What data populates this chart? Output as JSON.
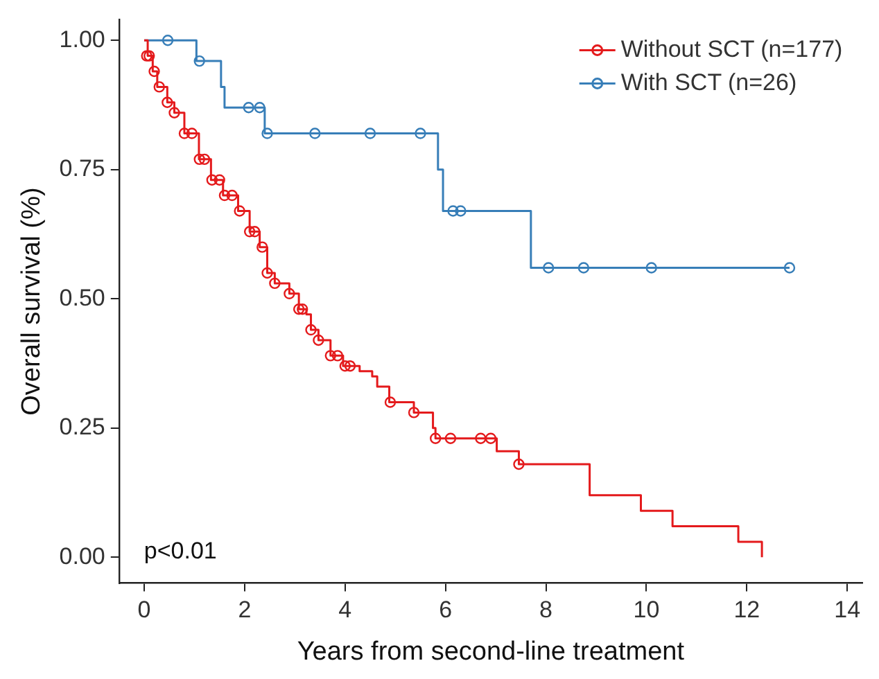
{
  "chart_data": {
    "type": "step",
    "xlabel": "Years from second-line treatment",
    "ylabel": "Overall survival (%)",
    "xlim": [
      -0.5,
      14.3
    ],
    "ylim": [
      -0.05,
      1.04
    ],
    "xticks": [
      0,
      2,
      4,
      6,
      8,
      10,
      12,
      14
    ],
    "yticks": [
      {
        "value": 0,
        "label": "0.00"
      },
      {
        "value": 0.25,
        "label": "0.25"
      },
      {
        "value": 0.5,
        "label": "0.50"
      },
      {
        "value": 0.75,
        "label": "0.75"
      },
      {
        "value": 1,
        "label": "1.00"
      }
    ],
    "grid": false,
    "legend": "top right",
    "line_style": "solid",
    "marker": "none",
    "annotations": [
      "p<0.01"
    ],
    "series": [
      {
        "name": "Without SCT (n=177)",
        "type": "step",
        "color": "#e41a1c",
        "x": [
          0,
          0.07,
          0.17,
          0.26,
          0.46,
          0.6,
          0.8,
          1.09,
          1.33,
          1.57,
          1.87,
          2.1,
          2.3,
          2.45,
          2.6,
          2.89,
          3.08,
          3.23,
          3.32,
          3.47,
          3.71,
          3.96,
          4.29,
          4.54,
          4.64,
          4.88,
          5.37,
          5.75,
          5.8,
          7.02,
          7.46,
          8.87,
          9.89,
          10.52,
          11.83,
          12.3
        ],
        "values": [
          1,
          0.97,
          0.94,
          0.91,
          0.88,
          0.86,
          0.82,
          0.77,
          0.73,
          0.7,
          0.67,
          0.63,
          0.6,
          0.55,
          0.53,
          0.51,
          0.48,
          0.47,
          0.44,
          0.42,
          0.39,
          0.37,
          0.36,
          0.35,
          0.33,
          0.3,
          0.28,
          0.25,
          0.23,
          0.205,
          0.18,
          0.12,
          0.09,
          0.06,
          0.03,
          0
        ]
      },
      {
        "name": "With SCT (n=26)",
        "type": "step",
        "color": "#377eb8",
        "x": [
          0,
          1.04,
          1.53,
          1.6,
          2.4,
          5.85,
          5.95,
          7.7,
          12.85
        ],
        "values": [
          1,
          0.96,
          0.91,
          0.87,
          0.82,
          0.75,
          0.67,
          0.56,
          0.56
        ]
      },
      {
        "type": "scatter",
        "marker": "circle",
        "color": "#e41a1c",
        "x": [
          0.05,
          0.1,
          0.2,
          0.3,
          0.46,
          0.6,
          0.8,
          0.95,
          1.1,
          1.2,
          1.35,
          1.5,
          1.6,
          1.75,
          1.9,
          2.1,
          2.2,
          2.35,
          2.45,
          2.6,
          2.89,
          3.08,
          3.15,
          3.32,
          3.47,
          3.71,
          3.85,
          4.0,
          4.1,
          4.9,
          5.37,
          5.8,
          6.1,
          6.7,
          6.9,
          7.46
        ],
        "values": [
          0.97,
          0.97,
          0.94,
          0.91,
          0.88,
          0.86,
          0.82,
          0.82,
          0.77,
          0.77,
          0.73,
          0.73,
          0.7,
          0.7,
          0.67,
          0.63,
          0.63,
          0.6,
          0.55,
          0.53,
          0.51,
          0.48,
          0.48,
          0.44,
          0.42,
          0.39,
          0.39,
          0.37,
          0.37,
          0.3,
          0.28,
          0.23,
          0.23,
          0.23,
          0.23,
          0.18
        ]
      },
      {
        "type": "scatter",
        "marker": "circle",
        "color": "#377eb8",
        "x": [
          0.47,
          1.1,
          2.08,
          2.3,
          2.45,
          3.4,
          4.5,
          5.5,
          6.15,
          6.3,
          8.05,
          8.75,
          10.1,
          12.85
        ],
        "values": [
          1,
          0.96,
          0.87,
          0.87,
          0.82,
          0.82,
          0.82,
          0.82,
          0.67,
          0.67,
          0.56,
          0.56,
          0.56,
          0.56
        ]
      }
    ]
  }
}
